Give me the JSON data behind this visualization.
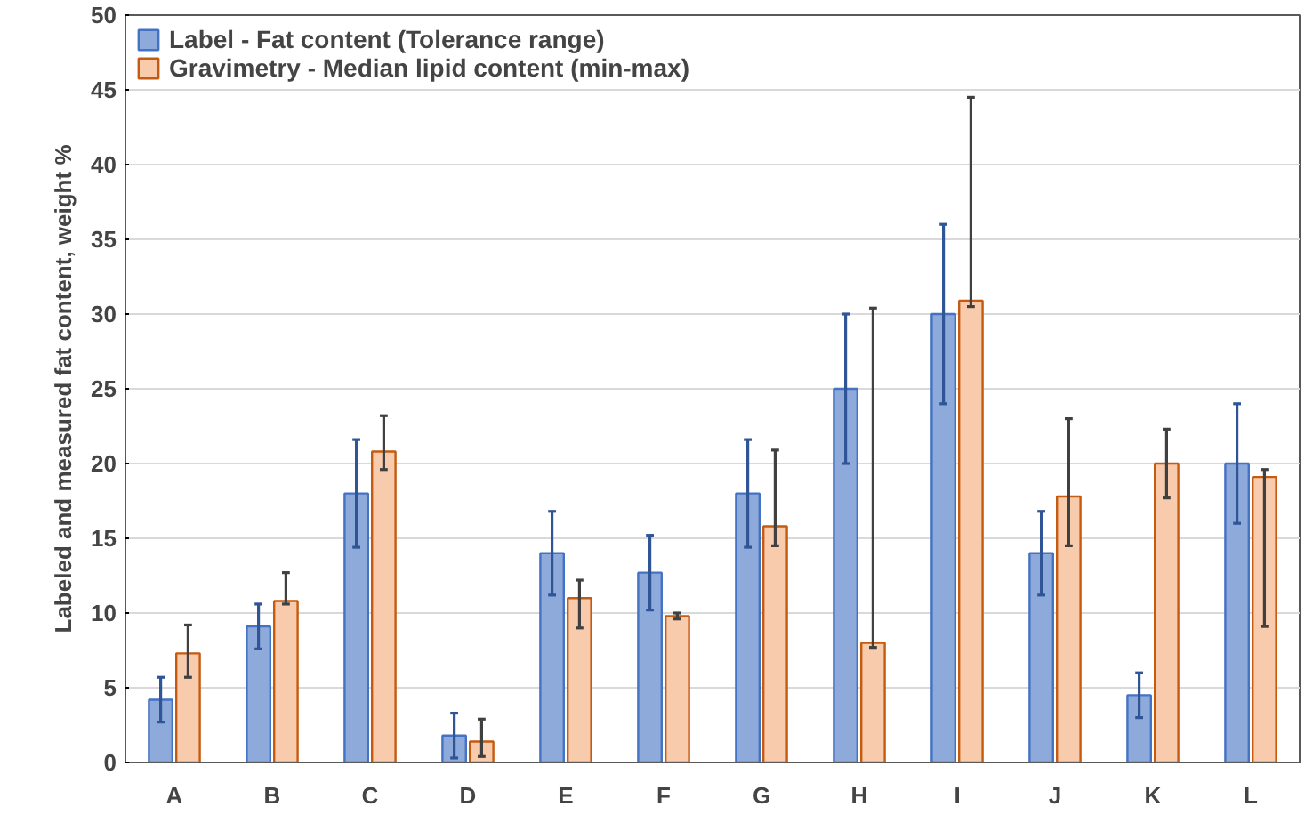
{
  "chart_data": {
    "type": "bar",
    "ylabel": "Labeled and measured fat content, weight %",
    "categories": [
      "A",
      "B",
      "C",
      "D",
      "E",
      "F",
      "G",
      "H",
      "I",
      "J",
      "K",
      "L"
    ],
    "series": [
      {
        "name": "Label - Fat content (Tolerance range)",
        "color": "#8eaadb",
        "values": [
          4.2,
          9.1,
          18.0,
          1.8,
          14.0,
          12.7,
          18.0,
          25.0,
          30.0,
          14.0,
          4.5,
          20.0
        ],
        "errors": [
          [
            2.7,
            5.7
          ],
          [
            7.6,
            10.6
          ],
          [
            14.4,
            21.6
          ],
          [
            0.3,
            3.3
          ],
          [
            11.2,
            16.8
          ],
          [
            10.2,
            15.2
          ],
          [
            14.4,
            21.6
          ],
          [
            20.0,
            30.0
          ],
          [
            24.0,
            36.0
          ],
          [
            11.2,
            16.8
          ],
          [
            3.0,
            6.0
          ],
          [
            16.0,
            24.0
          ]
        ]
      },
      {
        "name": "Gravimetry - Median lipid content (min-max)",
        "color": "#f8cbad",
        "values": [
          7.3,
          10.8,
          20.8,
          1.4,
          11.0,
          9.8,
          15.8,
          8.0,
          30.9,
          17.8,
          20.0,
          19.1
        ],
        "errors": [
          [
            5.7,
            9.2
          ],
          [
            10.6,
            12.7
          ],
          [
            19.6,
            23.2
          ],
          [
            0.4,
            2.9
          ],
          [
            9.0,
            12.2
          ],
          [
            9.6,
            10.0
          ],
          [
            14.5,
            20.9
          ],
          [
            7.7,
            30.4
          ],
          [
            30.5,
            44.5
          ],
          [
            14.5,
            23.0
          ],
          [
            17.7,
            22.3
          ],
          [
            9.1,
            19.6
          ]
        ]
      }
    ],
    "ylim": [
      0,
      50
    ],
    "yticks": [
      0,
      5,
      10,
      15,
      20,
      25,
      30,
      35,
      40,
      45,
      50
    ],
    "grid": "y",
    "legend": "top left"
  }
}
